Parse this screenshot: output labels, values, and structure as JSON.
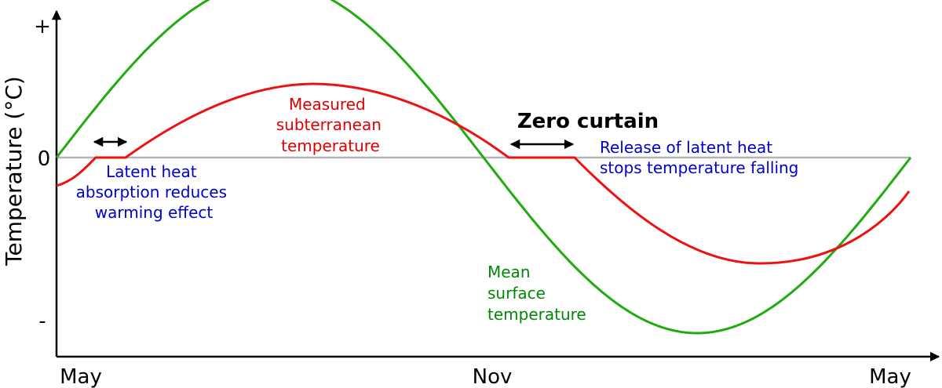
{
  "chart_data": {
    "type": "line",
    "ylabel": "Temperature (°C)",
    "x_ticks": [
      "May",
      "Nov",
      "May"
    ],
    "y_ticks": [
      "+",
      "0",
      "-"
    ],
    "series": [
      {
        "name": "Mean surface temperature",
        "color": "#22aa11"
      },
      {
        "name": "Measured subterranean temperature",
        "color": "#ee1111"
      }
    ],
    "annotations": {
      "latent_heat_absorption": [
        "Latent heat",
        "absorption reduces",
        "warming effect"
      ],
      "measured_label": [
        "Measured",
        "subterranean",
        "temperature"
      ],
      "zero_curtain": "Zero curtain",
      "release_latent_heat": [
        "Release of latent heat",
        "stops temperature falling"
      ],
      "mean_surface_label": [
        "Mean",
        "surface",
        "temperature"
      ]
    },
    "colors": {
      "annotation_blue": "#0000cc",
      "annotation_red": "#e00000",
      "annotation_green": "#008800",
      "zero_line": "#b3b3b3"
    }
  }
}
